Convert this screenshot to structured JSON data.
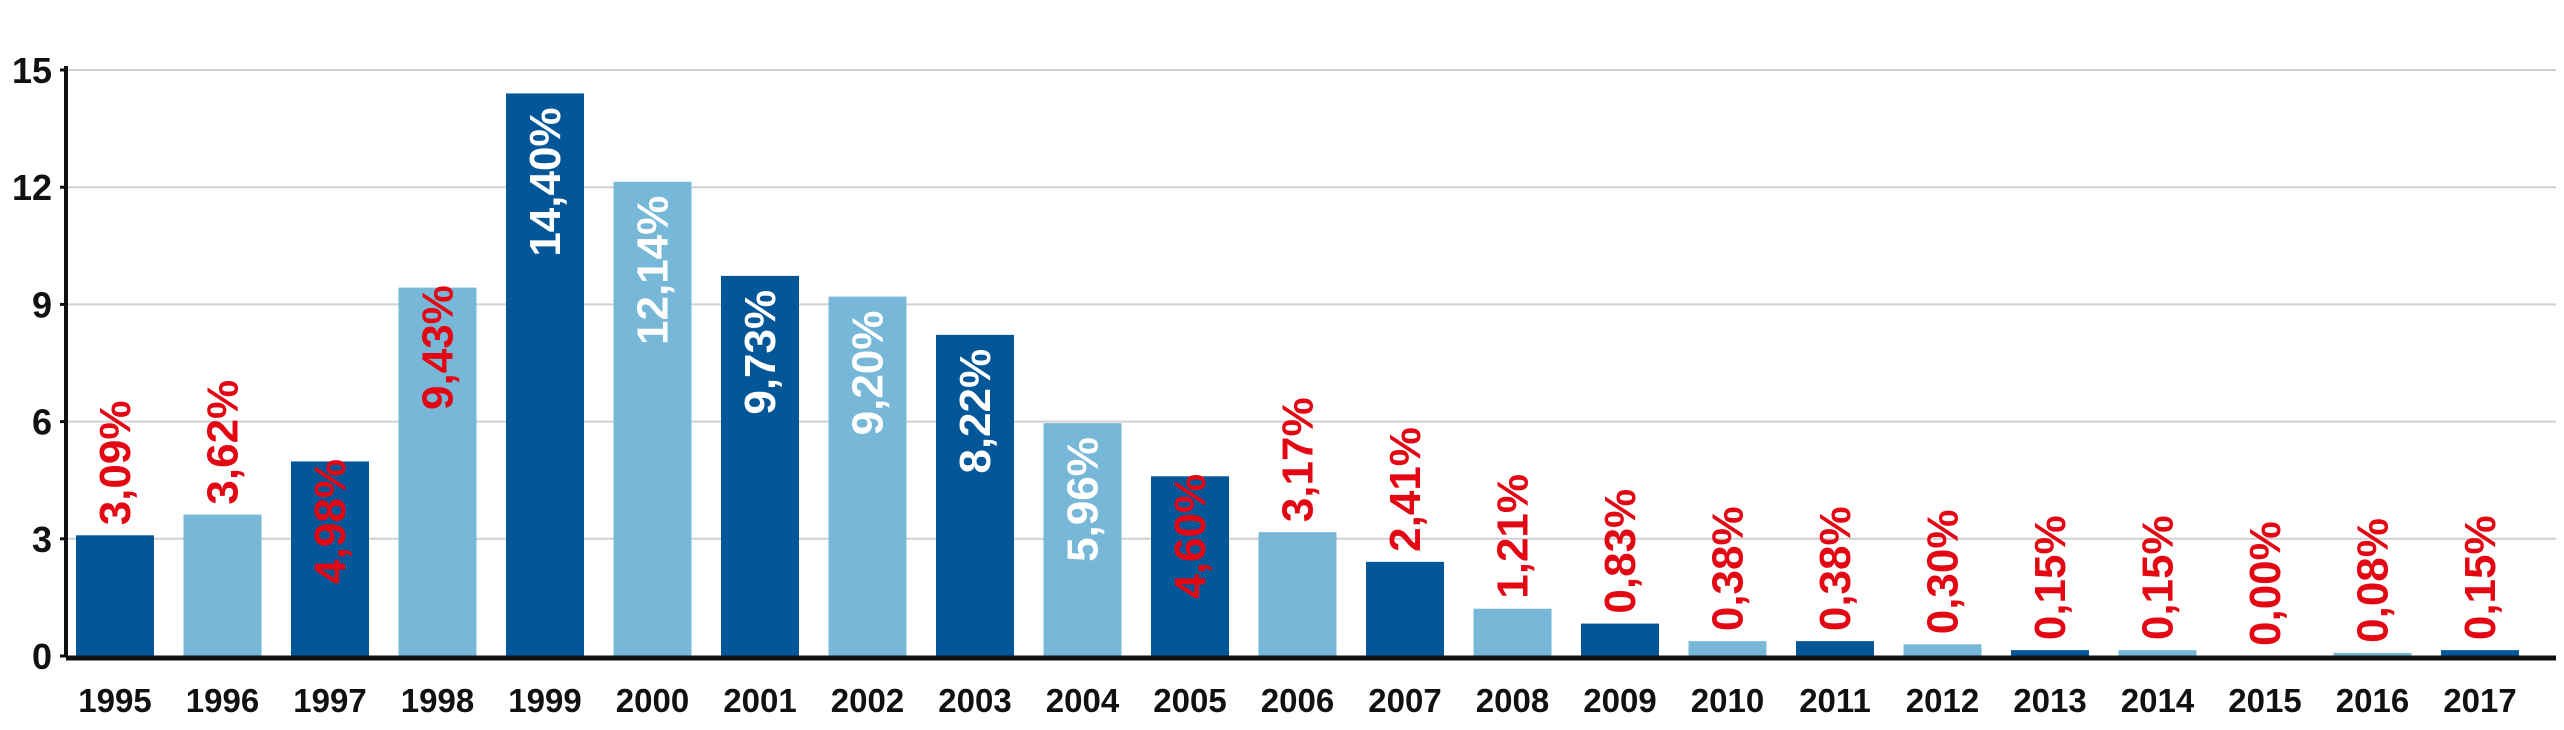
{
  "colors": {
    "dark_blue": "#035799",
    "light_blue": "#77b8d9",
    "label_red": "#e30613",
    "label_white": "#ffffff",
    "axis": "#111111",
    "grid": "#d0d0d0",
    "text": "#111111"
  },
  "chart_data": {
    "type": "bar",
    "title": "",
    "xlabel": "",
    "ylabel": "",
    "ylim": [
      0,
      15
    ],
    "yticks": [
      0,
      3,
      6,
      9,
      12,
      15
    ],
    "grid": true,
    "legend": "none",
    "categories": [
      "1995",
      "1996",
      "1997",
      "1998",
      "1999",
      "2000",
      "2001",
      "2002",
      "2003",
      "2004",
      "2005",
      "2006",
      "2007",
      "2008",
      "2009",
      "2010",
      "2011",
      "2012",
      "2013",
      "2014",
      "2015",
      "2016",
      "2017"
    ],
    "values": [
      3.09,
      3.62,
      4.98,
      9.43,
      14.4,
      12.14,
      9.73,
      9.2,
      8.22,
      5.96,
      4.6,
      3.17,
      2.41,
      1.21,
      0.83,
      0.38,
      0.38,
      0.3,
      0.15,
      0.15,
      0.0,
      0.08,
      0.15
    ],
    "labels": [
      "3,09%",
      "3,62%",
      "4,98%",
      "9,43%",
      "14,40%",
      "12,14%",
      "9,73%",
      "9,20%",
      "8,22%",
      "5,96%",
      "4,60%",
      "3,17%",
      "2,41%",
      "1,21%",
      "0,83%",
      "0,38%",
      "0,38%",
      "0,30%",
      "0,15%",
      "0,15%",
      "0,00%",
      "0,08%",
      "0,15%"
    ],
    "bar_colors": [
      "dark_blue",
      "light_blue",
      "dark_blue",
      "light_blue",
      "dark_blue",
      "light_blue",
      "dark_blue",
      "light_blue",
      "dark_blue",
      "light_blue",
      "dark_blue",
      "light_blue",
      "dark_blue",
      "light_blue",
      "dark_blue",
      "light_blue",
      "dark_blue",
      "light_blue",
      "dark_blue",
      "light_blue",
      "dark_blue",
      "light_blue",
      "dark_blue"
    ],
    "label_colors": [
      "label_red",
      "label_red",
      "label_red",
      "label_red",
      "label_white",
      "label_white",
      "label_white",
      "label_white",
      "label_white",
      "label_white",
      "label_red",
      "label_red",
      "label_red",
      "label_red",
      "label_red",
      "label_red",
      "label_red",
      "label_red",
      "label_red",
      "label_red",
      "label_red",
      "label_red",
      "label_red"
    ]
  }
}
